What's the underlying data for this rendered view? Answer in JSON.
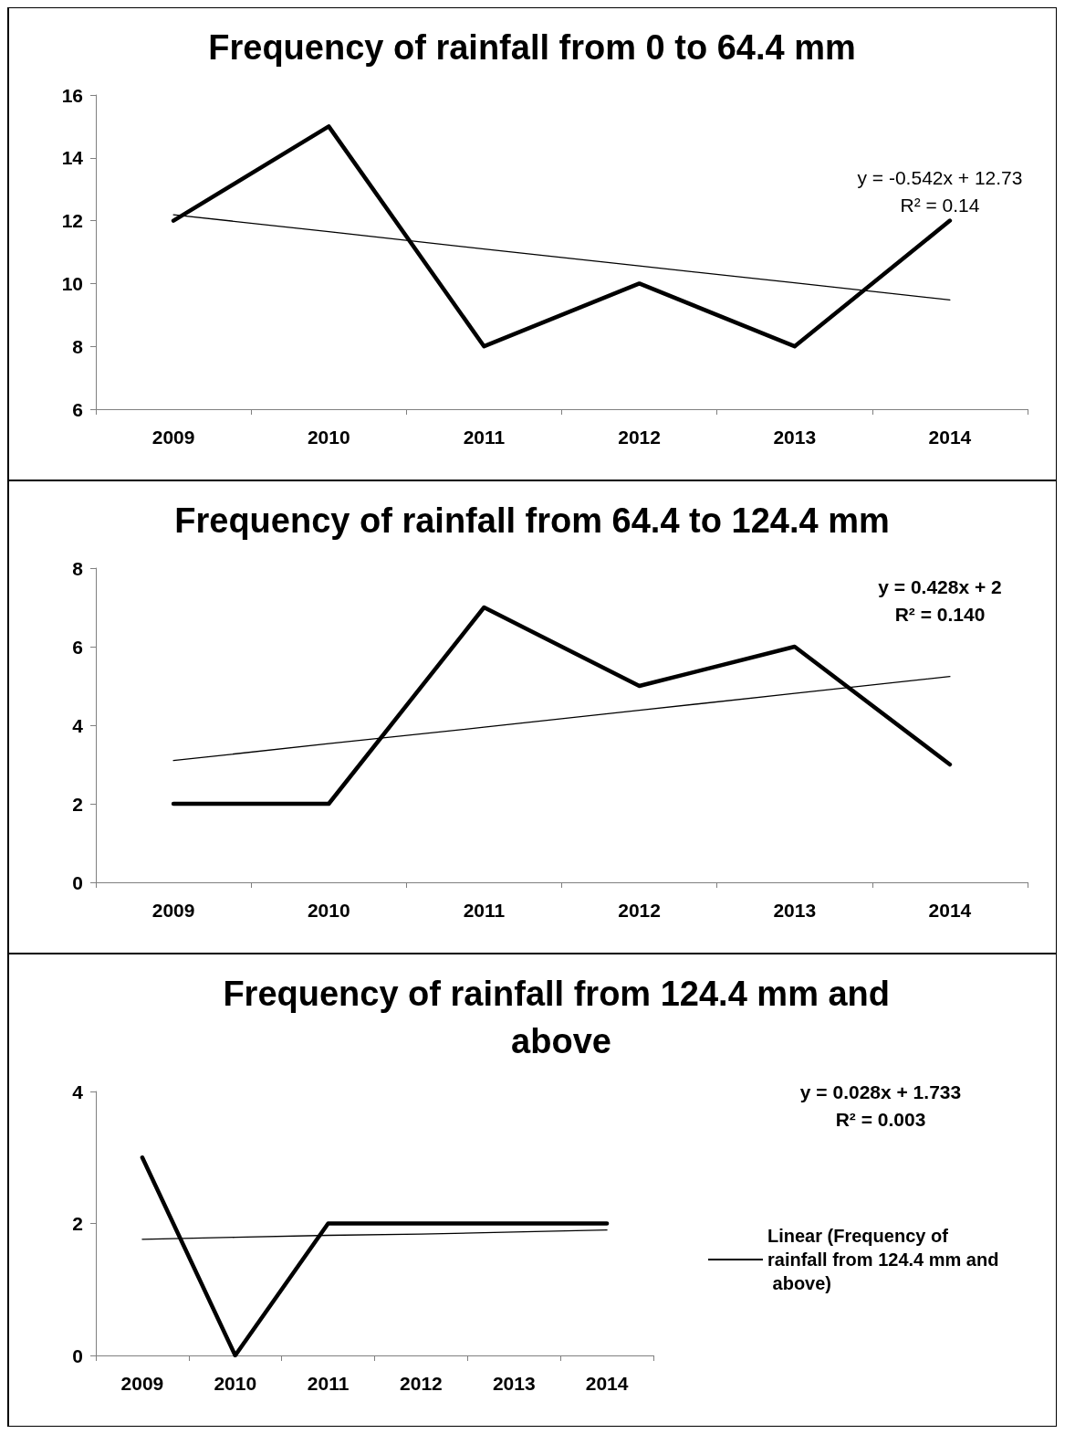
{
  "chart_data": [
    {
      "type": "line",
      "title": "Frequency of rainfall from 0 to 64.4 mm",
      "categories": [
        "2009",
        "2010",
        "2011",
        "2012",
        "2013",
        "2014"
      ],
      "ylim": [
        6,
        16
      ],
      "yticks": [
        6,
        8,
        10,
        12,
        14,
        16
      ],
      "grid": false,
      "legend": false,
      "marker": "none",
      "line_style": "solid",
      "annotations": [
        "y = -0.542x + 12.73",
        "R² = 0.14"
      ],
      "series": [
        {
          "color": "#000000",
          "values": [
            12,
            15,
            8,
            10,
            8,
            12
          ]
        },
        {
          "color": "#000000",
          "values": [
            12.19,
            11.65,
            11.1,
            10.56,
            10.02,
            9.48
          ]
        }
      ]
    },
    {
      "type": "line",
      "title": "Frequency of rainfall from 64.4 to 124.4 mm",
      "categories": [
        "2009",
        "2010",
        "2011",
        "2012",
        "2013",
        "2014"
      ],
      "ylim": [
        0,
        8
      ],
      "yticks": [
        0,
        2,
        4,
        6,
        8
      ],
      "grid": false,
      "legend": false,
      "marker": "none",
      "line_style": "solid",
      "annotations": [
        "y = 0.428x + 2",
        "R² = 0.140"
      ],
      "series": [
        {
          "color": "#000000",
          "values": [
            2,
            2,
            7,
            5,
            6,
            3
          ]
        },
        {
          "color": "#000000",
          "values": [
            3.1,
            3.53,
            3.95,
            4.38,
            4.81,
            5.24
          ]
        }
      ]
    },
    {
      "type": "line",
      "title": "Frequency of rainfall from 124.4 mm and above",
      "categories": [
        "2009",
        "2010",
        "2011",
        "2012",
        "2013",
        "2014"
      ],
      "ylim": [
        0,
        4
      ],
      "yticks": [
        0,
        2,
        4
      ],
      "grid": false,
      "legend": "right",
      "marker": "none",
      "line_style": "solid",
      "annotations": [
        "y = 0.028x + 1.733",
        "R² = 0.003"
      ],
      "series": [
        {
          "color": "#000000",
          "values": [
            3,
            0,
            2,
            2,
            2,
            2
          ]
        },
        {
          "name": "Linear (Frequency of rainfall from 124.4 mm and above)",
          "color": "#000000",
          "values": [
            1.76,
            1.79,
            1.82,
            1.84,
            1.87,
            1.9
          ]
        }
      ]
    }
  ]
}
